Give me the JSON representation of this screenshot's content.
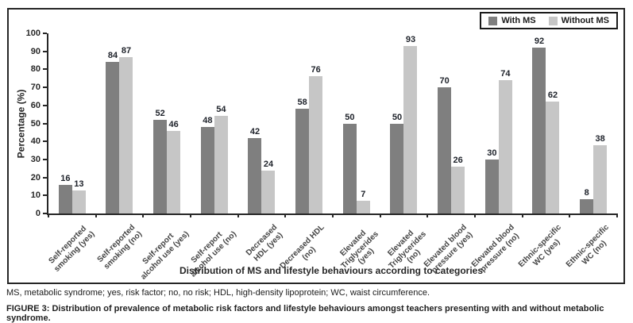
{
  "chart_data": {
    "type": "bar",
    "title": "",
    "xlabel": "Distribution of MS and lifestyle behaviours according to categories",
    "ylabel": "Percentage (%)",
    "ylim": [
      0,
      100
    ],
    "yticks": [
      0,
      10,
      20,
      30,
      40,
      50,
      60,
      70,
      80,
      90,
      100
    ],
    "grid": false,
    "legend_position": "top-right",
    "categories": [
      "Self-reported\nsmoking (yes)",
      "Self-reported\nsmoking (no)",
      "Self-report\nalcohol use (yes)",
      "Self-report\nalcohol use (no)",
      "Decreased\nHDL (yes)",
      "Decreased HDL\n(no)",
      "Elevated\nTriglycerides\n(yes)",
      "Elevated\nTriglycerides\n(no)",
      "Elevated blood\npressure (yes)",
      "Elevated blood\npressure (no)",
      "Ethnic-specific\nWC (yes)",
      "Ethnic-specific\nWC (no)"
    ],
    "series": [
      {
        "name": "With MS",
        "color": "#7f7f7f",
        "values": [
          16,
          84,
          52,
          48,
          42,
          58,
          50,
          50,
          70,
          30,
          92,
          8
        ]
      },
      {
        "name": "Without MS",
        "color": "#c6c6c6",
        "values": [
          13,
          87,
          46,
          54,
          24,
          76,
          7,
          93,
          26,
          74,
          62,
          38
        ]
      }
    ]
  },
  "colors": {
    "with_ms": "#7f7f7f",
    "without_ms": "#c6c6c6",
    "axis": "#262626",
    "value_label": "#20242c"
  },
  "caption": {
    "abbreviations": "MS, metabolic syndrome; yes, risk factor; no, no risk; HDL, high-density lipoprotein; WC, waist circumference.",
    "figure_label": "FIGURE 3:",
    "figure_text": " Distribution of prevalence of metabolic risk factors and lifestyle behaviours amongst teachers presenting with and without metabolic syndrome."
  }
}
